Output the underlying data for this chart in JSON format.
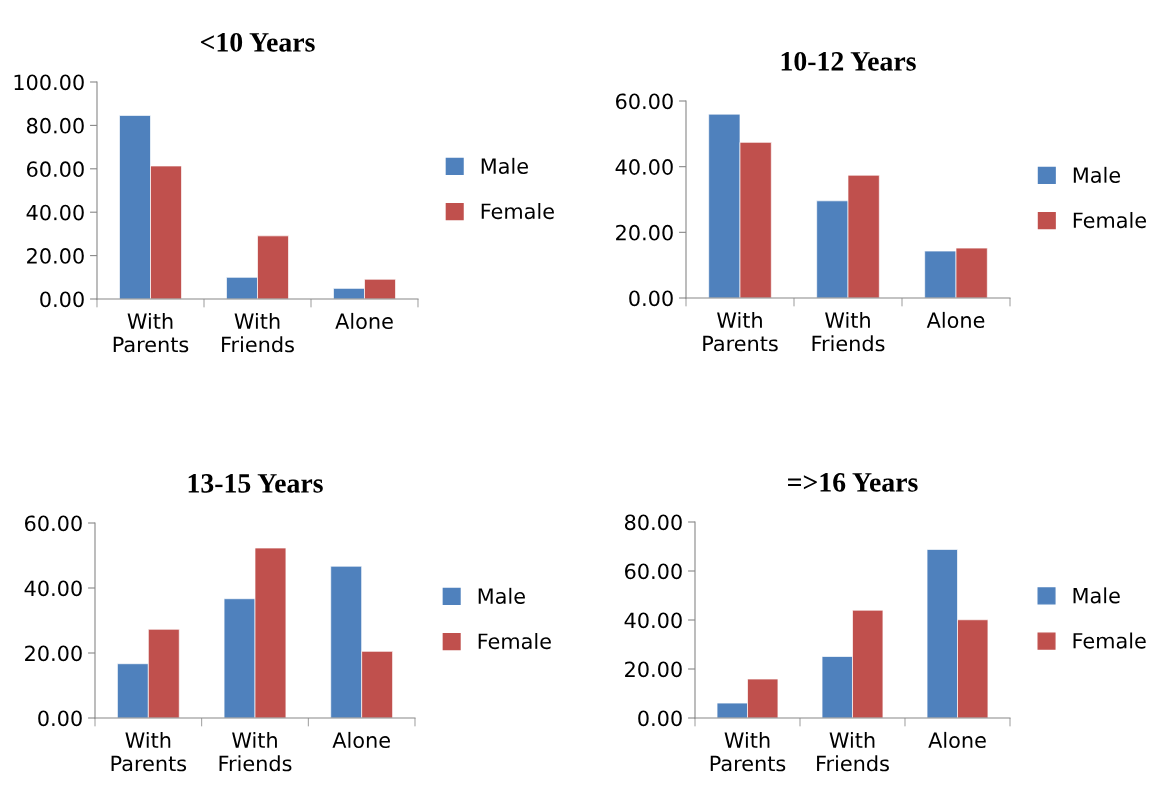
{
  "chart_data": [
    {
      "type": "bar",
      "title": "<10 Years",
      "categories": [
        "With\nParents",
        "With\nFriends",
        "Alone"
      ],
      "series": [
        {
          "name": "Male",
          "color": "#4f81bd",
          "values": [
            84.6,
            10.0,
            4.9
          ]
        },
        {
          "name": "Female",
          "color": "#c0504d",
          "values": [
            61.3,
            29.1,
            9.1
          ]
        }
      ],
      "ylim": [
        0,
        100
      ],
      "yticks": [
        {
          "value": 0,
          "label": "0.00"
        },
        {
          "value": 20,
          "label": "20.00"
        },
        {
          "value": 40,
          "label": "40.00"
        },
        {
          "value": 60,
          "label": "60.00"
        },
        {
          "value": 80,
          "label": "80.00"
        },
        {
          "value": 100,
          "label": "100.00"
        }
      ],
      "grid": false,
      "legend": "right"
    },
    {
      "type": "bar",
      "title": "10-12 Years",
      "categories": [
        "With\nParents",
        "With\nFriends",
        "Alone"
      ],
      "series": [
        {
          "name": "Male",
          "color": "#4f81bd",
          "values": [
            56.0,
            29.6,
            14.3
          ]
        },
        {
          "name": "Female",
          "color": "#c0504d",
          "values": [
            47.4,
            37.4,
            15.2
          ]
        }
      ],
      "ylim": [
        0,
        60
      ],
      "yticks": [
        {
          "value": 0,
          "label": "0.00"
        },
        {
          "value": 20,
          "label": "20.00"
        },
        {
          "value": 40,
          "label": "40.00"
        },
        {
          "value": 60,
          "label": "60.00"
        }
      ],
      "grid": false,
      "legend": "right"
    },
    {
      "type": "bar",
      "title": "13-15 Years",
      "categories": [
        "With\nParents",
        "With\nFriends",
        "Alone"
      ],
      "series": [
        {
          "name": "Male",
          "color": "#4f81bd",
          "values": [
            16.7,
            36.7,
            46.7
          ]
        },
        {
          "name": "Female",
          "color": "#c0504d",
          "values": [
            27.3,
            52.3,
            20.5
          ]
        }
      ],
      "ylim": [
        0,
        60
      ],
      "yticks": [
        {
          "value": 0,
          "label": "0.00"
        },
        {
          "value": 20,
          "label": "20.00"
        },
        {
          "value": 40,
          "label": "40.00"
        },
        {
          "value": 60,
          "label": "60.00"
        }
      ],
      "grid": false,
      "legend": "right"
    },
    {
      "type": "bar",
      "title": "=>16 Years",
      "categories": [
        "With\nParents",
        "With\nFriends",
        "Alone"
      ],
      "series": [
        {
          "name": "Male",
          "color": "#4f81bd",
          "values": [
            6.1,
            25.1,
            68.8
          ]
        },
        {
          "name": "Female",
          "color": "#c0504d",
          "values": [
            15.9,
            44.0,
            40.1
          ]
        }
      ],
      "ylim": [
        0,
        80
      ],
      "yticks": [
        {
          "value": 0,
          "label": "0.00"
        },
        {
          "value": 20,
          "label": "20.00"
        },
        {
          "value": 40,
          "label": "40.00"
        },
        {
          "value": 60,
          "label": "60.00"
        },
        {
          "value": 80,
          "label": "80.00"
        }
      ],
      "grid": false,
      "legend": "right"
    }
  ]
}
